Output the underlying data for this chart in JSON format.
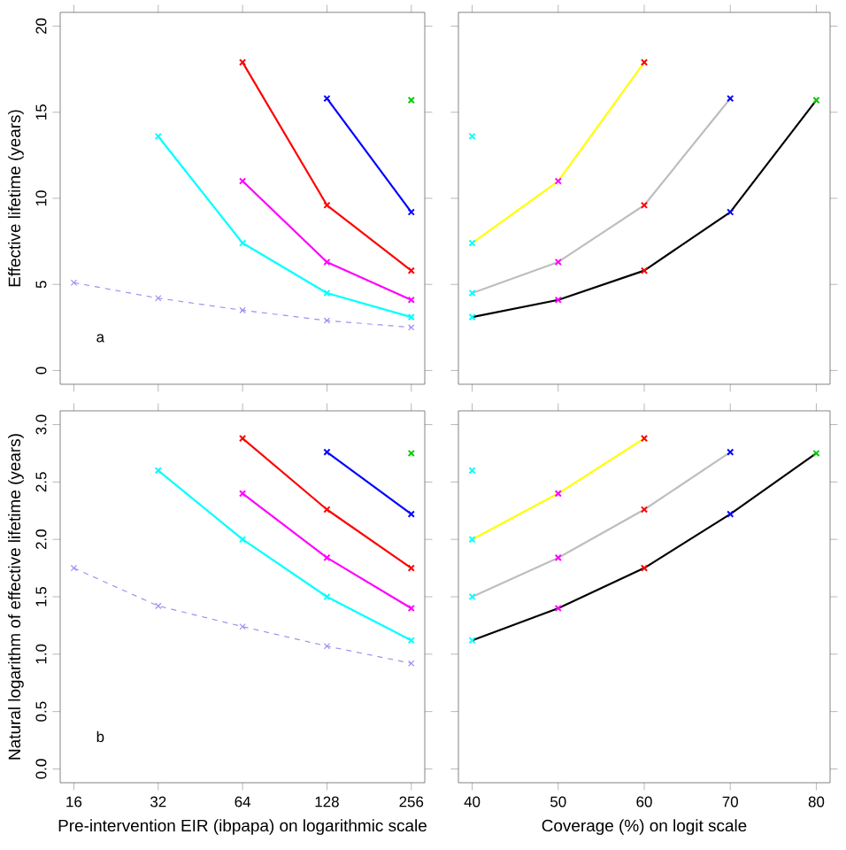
{
  "chart_data": [
    {
      "type": "line",
      "ylabel": "Effective lifetime (years)",
      "annotations": [
        "a"
      ],
      "log": "x",
      "marker": "cross",
      "line_style": "solid",
      "tick_labels": "y",
      "xlim": [
        14.3,
        286
      ],
      "xticks": [
        16,
        32,
        64,
        128,
        256
      ],
      "ylim": [
        -0.8,
        20.8
      ],
      "yticks": [
        0,
        5,
        10,
        15,
        20
      ],
      "series": [
        {
          "color": "#a08ff0",
          "line_style": "dashed",
          "x": [
            16,
            32,
            64,
            128,
            256
          ],
          "values": [
            5.1,
            4.2,
            3.5,
            2.9,
            2.5
          ]
        },
        {
          "color": "#00ffff",
          "x": [
            32,
            64,
            128,
            256
          ],
          "values": [
            13.6,
            7.4,
            4.5,
            3.1
          ]
        },
        {
          "color": "#ff00ff",
          "x": [
            64,
            128,
            256
          ],
          "values": [
            11.0,
            6.3,
            4.1
          ]
        },
        {
          "color": "#ff0000",
          "x": [
            64,
            128,
            256
          ],
          "values": [
            17.9,
            9.6,
            5.8
          ]
        },
        {
          "color": "#0000ff",
          "x": [
            128,
            256
          ],
          "values": [
            15.8,
            9.2
          ]
        },
        {
          "type": "scatter",
          "color": "#00cd00",
          "x": [
            256
          ],
          "values": [
            15.7
          ]
        }
      ]
    },
    {
      "type": "line",
      "marker": "cross",
      "line_style": "solid",
      "tick_labels": false,
      "xlim": [
        38.4,
        81.6
      ],
      "xticks": [
        40,
        50,
        60,
        70,
        80
      ],
      "ylim": [
        -0.8,
        20.8
      ],
      "yticks": [
        0,
        5,
        10,
        15,
        20
      ],
      "series": [
        {
          "type": "scatter",
          "color": "#00ffff",
          "x": [
            40
          ],
          "values": [
            13.6
          ]
        },
        {
          "color": "#ffff00",
          "colors": [
            "#00ffff",
            "#ff00ff",
            "#ff0000"
          ],
          "x": [
            40,
            50,
            60
          ],
          "values": [
            7.4,
            11.0,
            17.9
          ]
        },
        {
          "color": "#bebebe",
          "colors": [
            "#00ffff",
            "#ff00ff",
            "#ff0000",
            "#0000ff"
          ],
          "x": [
            40,
            50,
            60,
            70
          ],
          "values": [
            4.5,
            6.3,
            9.6,
            15.8
          ]
        },
        {
          "color": "#000000",
          "colors": [
            "#00ffff",
            "#ff00ff",
            "#ff0000",
            "#0000ff",
            "#00cd00"
          ],
          "x": [
            40,
            50,
            60,
            70,
            80
          ],
          "values": [
            3.1,
            4.1,
            5.8,
            9.2,
            15.7
          ]
        }
      ]
    },
    {
      "type": "line",
      "xlabel": "Pre-intervention EIR (ibpapa) on logarithmic scale",
      "ylabel": "Natural logarithm of effective lifetime (years)",
      "annotations": [
        "b"
      ],
      "log": "x",
      "marker": "cross",
      "line_style": "solid",
      "xlim": [
        14.3,
        286
      ],
      "xticks": [
        16,
        32,
        64,
        128,
        256
      ],
      "ylim": [
        -0.12,
        3.12
      ],
      "yticks": [
        {
          "value": 0,
          "label": "0.0"
        },
        0.5,
        {
          "value": 1,
          "label": "1.0"
        },
        1.5,
        {
          "value": 2,
          "label": "2.0"
        },
        2.5,
        {
          "value": 3,
          "label": "3.0"
        }
      ],
      "series": [
        {
          "color": "#a08ff0",
          "line_style": "dashed",
          "x": [
            16,
            32,
            64,
            128,
            256
          ],
          "values": [
            1.75,
            1.42,
            1.24,
            1.07,
            0.92
          ]
        },
        {
          "color": "#00ffff",
          "x": [
            32,
            64,
            128,
            256
          ],
          "values": [
            2.6,
            2.0,
            1.5,
            1.12
          ]
        },
        {
          "color": "#ff00ff",
          "x": [
            64,
            128,
            256
          ],
          "values": [
            2.4,
            1.84,
            1.4
          ]
        },
        {
          "color": "#ff0000",
          "x": [
            64,
            128,
            256
          ],
          "values": [
            2.88,
            2.26,
            1.75
          ]
        },
        {
          "color": "#0000ff",
          "x": [
            128,
            256
          ],
          "values": [
            2.76,
            2.22
          ]
        },
        {
          "type": "scatter",
          "color": "#00cd00",
          "x": [
            256
          ],
          "values": [
            2.75
          ]
        }
      ]
    },
    {
      "type": "line",
      "xlabel": "Coverage (%) on logit scale",
      "marker": "cross",
      "line_style": "solid",
      "tick_labels": "x",
      "xlim": [
        38.4,
        81.6
      ],
      "xticks": [
        40,
        50,
        60,
        70,
        80
      ],
      "ylim": [
        -0.12,
        3.12
      ],
      "yticks": [
        0,
        0.5,
        1,
        1.5,
        2,
        2.5,
        3
      ],
      "series": [
        {
          "type": "scatter",
          "color": "#00ffff",
          "x": [
            40
          ],
          "values": [
            2.6
          ]
        },
        {
          "color": "#ffff00",
          "colors": [
            "#00ffff",
            "#ff00ff",
            "#ff0000"
          ],
          "x": [
            40,
            50,
            60
          ],
          "values": [
            2.0,
            2.4,
            2.88
          ]
        },
        {
          "color": "#bebebe",
          "colors": [
            "#00ffff",
            "#ff00ff",
            "#ff0000",
            "#0000ff"
          ],
          "x": [
            40,
            50,
            60,
            70
          ],
          "values": [
            1.5,
            1.84,
            2.26,
            2.76
          ]
        },
        {
          "color": "#000000",
          "colors": [
            "#00ffff",
            "#ff00ff",
            "#ff0000",
            "#0000ff",
            "#00cd00"
          ],
          "x": [
            40,
            50,
            60,
            70,
            80
          ],
          "values": [
            1.12,
            1.4,
            1.75,
            2.22,
            2.75
          ]
        }
      ]
    }
  ]
}
